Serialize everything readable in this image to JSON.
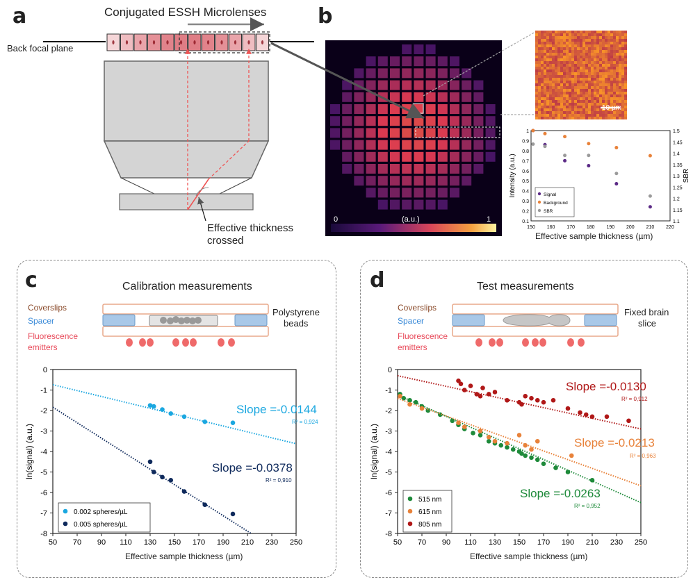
{
  "panel_a": {
    "label": "a",
    "title": "Conjugated ESSH Microlenses",
    "bfp": "Back focal plane",
    "thickness": "Effective thickness",
    "thickness2": "crossed"
  },
  "panel_b": {
    "label": "b",
    "scale0": "0",
    "scale_unit": "(a.u.)",
    "scale1": "1",
    "scalebar": "10 µm",
    "chart": {
      "ylabel": "Intensity (a.u.)",
      "y2label": "SBR",
      "xlabel": "Effective sample thickness (µm)"
    },
    "colors": {
      "signal": "#5b2a86",
      "background": "#e8823a",
      "sbr": "#9a9a9a"
    }
  },
  "panel_c": {
    "label": "c",
    "title": "Calibration measurements",
    "coverslips": "Coverslips",
    "spacer": "Spacer",
    "fluor": "Fluorescence",
    "emitters": "emitters",
    "beads1": "Polystyrene",
    "beads2": "beads",
    "slope1": "Slope =-0.0144",
    "r2_1": "R² = 0,924",
    "slope2": "Slope =-0.0378",
    "r2_2": "R² = 0,910",
    "ylabel": "ln(signal) (a.u.)",
    "xlabel": "Effective sample thickness (µm)",
    "colors": {
      "s1": "#1aa7e0",
      "s2": "#0f2a5c"
    }
  },
  "panel_d": {
    "label": "d",
    "title": "Test measurements",
    "coverslips": "Coverslips",
    "spacer": "Spacer",
    "fluor": "Fluorescence",
    "emitters": "emitters",
    "slice1": "Fixed brain",
    "slice2": "slice",
    "slope805": "Slope =-0.0130",
    "r2_805": "R² = 0,912",
    "slope615": "Slope =-0.0213",
    "r2_615": "R² = 0,963",
    "slope515": "Slope =-0.0263",
    "r2_515": "R² = 0,952",
    "ylabel": "ln(signal) (a.u.)",
    "xlabel": "Effective sample thickness (µm)",
    "colors": {
      "g": "#1e8a3a",
      "o": "#e8823a",
      "r": "#b01818"
    }
  },
  "chart_data": [
    {
      "type": "scatter",
      "xlabel": "Effective sample thickness (µm)",
      "ylabel": "Intensity (a.u.)",
      "y2label": "SBR",
      "xlim": [
        150,
        220
      ],
      "ylim": [
        0.1,
        1
      ],
      "y2lim": [
        1.1,
        1.5
      ],
      "xticks": [
        150,
        160,
        170,
        180,
        190,
        200,
        210,
        220
      ],
      "yticks": [
        0.1,
        0.2,
        0.3,
        0.4,
        0.5,
        0.6,
        0.7,
        0.8,
        0.9,
        1
      ],
      "y2ticks": [
        1.1,
        1.15,
        1.2,
        1.25,
        1.3,
        1.35,
        1.4,
        1.45,
        1.5
      ],
      "series": [
        {
          "name": "Signal",
          "axis": "left",
          "x": [
            151,
            157,
            167,
            179,
            193,
            210
          ],
          "y": [
            1.0,
            0.86,
            0.7,
            0.65,
            0.47,
            0.24
          ]
        },
        {
          "name": "Background",
          "axis": "left",
          "x": [
            151,
            157,
            167,
            179,
            193,
            210
          ],
          "y": [
            1.0,
            0.97,
            0.94,
            0.87,
            0.83,
            0.75
          ]
        },
        {
          "name": "SBR",
          "axis": "right",
          "x": [
            151,
            157,
            167,
            179,
            193,
            210
          ],
          "y": [
            1.44,
            1.43,
            1.39,
            1.39,
            1.31,
            1.21
          ]
        }
      ],
      "legend": "bottom-left"
    },
    {
      "type": "scatter",
      "xlabel": "Effective sample thickness (µm)",
      "ylabel": "ln(signal) (a.u.)",
      "xlim": [
        50,
        250
      ],
      "ylim": [
        -8,
        0
      ],
      "xticks": [
        50,
        70,
        90,
        110,
        130,
        150,
        170,
        190,
        210,
        230,
        250
      ],
      "yticks": [
        0,
        -1,
        -2,
        -3,
        -4,
        -5,
        -6,
        -7,
        -8
      ],
      "series": [
        {
          "name": "0.002 spheres/µL",
          "x": [
            130,
            133,
            140,
            147,
            158,
            175,
            198
          ],
          "y": [
            -1.75,
            -1.8,
            -1.95,
            -2.15,
            -2.3,
            -2.55,
            -2.6
          ],
          "fit": {
            "slope": -0.0144,
            "intercept": -0.02
          }
        },
        {
          "name": "0.005 spheres/µL",
          "x": [
            130,
            133,
            140,
            147,
            158,
            175,
            198
          ],
          "y": [
            -4.5,
            -5.0,
            -5.25,
            -5.4,
            -5.95,
            -6.6,
            -7.05
          ],
          "fit": {
            "slope": -0.0378,
            "intercept": 0.05
          }
        }
      ],
      "legend": "bottom-left"
    },
    {
      "type": "scatter",
      "xlabel": "Effective sample thickness (µm)",
      "ylabel": "ln(signal) (a.u.)",
      "xlim": [
        50,
        250
      ],
      "ylim": [
        -8,
        0
      ],
      "xticks": [
        50,
        70,
        90,
        110,
        130,
        150,
        170,
        190,
        210,
        230,
        250
      ],
      "yticks": [
        0,
        -1,
        -2,
        -3,
        -4,
        -5,
        -6,
        -7,
        -8
      ],
      "series": [
        {
          "name": "515 nm",
          "x": [
            52,
            55,
            60,
            65,
            70,
            75,
            85,
            95,
            100,
            105,
            112,
            118,
            125,
            130,
            135,
            140,
            145,
            150,
            152,
            155,
            160,
            165,
            170,
            180,
            190,
            210
          ],
          "y": [
            -1.2,
            -1.4,
            -1.5,
            -1.6,
            -1.8,
            -2.0,
            -2.2,
            -2.5,
            -2.7,
            -2.9,
            -3.1,
            -3.2,
            -3.5,
            -3.6,
            -3.7,
            -3.8,
            -3.9,
            -4.0,
            -4.1,
            -4.2,
            -4.3,
            -4.4,
            -4.6,
            -4.8,
            -5.0,
            -5.4
          ],
          "fit": {
            "slope": -0.0263,
            "intercept": 0.08
          }
        },
        {
          "name": "615 nm",
          "x": [
            52,
            60,
            70,
            100,
            105,
            118,
            125,
            130,
            140,
            150,
            155,
            160,
            165,
            193
          ],
          "y": [
            -1.3,
            -1.7,
            -1.9,
            -2.6,
            -2.8,
            -3.0,
            -3.3,
            -3.5,
            -3.6,
            -3.2,
            -3.7,
            -3.9,
            -3.5,
            -4.2
          ],
          "fit": {
            "slope": -0.0213,
            "intercept": -0.35
          }
        },
        {
          "name": "805 nm",
          "x": [
            100,
            102,
            105,
            110,
            115,
            118,
            120,
            125,
            130,
            140,
            150,
            152,
            155,
            160,
            165,
            170,
            178,
            190,
            200,
            205,
            210,
            222,
            240
          ],
          "y": [
            -0.55,
            -0.7,
            -1.0,
            -0.8,
            -1.2,
            -1.3,
            -0.9,
            -1.2,
            -1.1,
            -1.5,
            -1.6,
            -1.7,
            -1.3,
            -1.4,
            -1.5,
            -1.6,
            -1.5,
            -1.9,
            -2.1,
            -2.2,
            -2.3,
            -2.3,
            -2.5
          ],
          "fit": {
            "slope": -0.013,
            "intercept": 0.35
          }
        }
      ],
      "legend": "bottom-left"
    }
  ]
}
